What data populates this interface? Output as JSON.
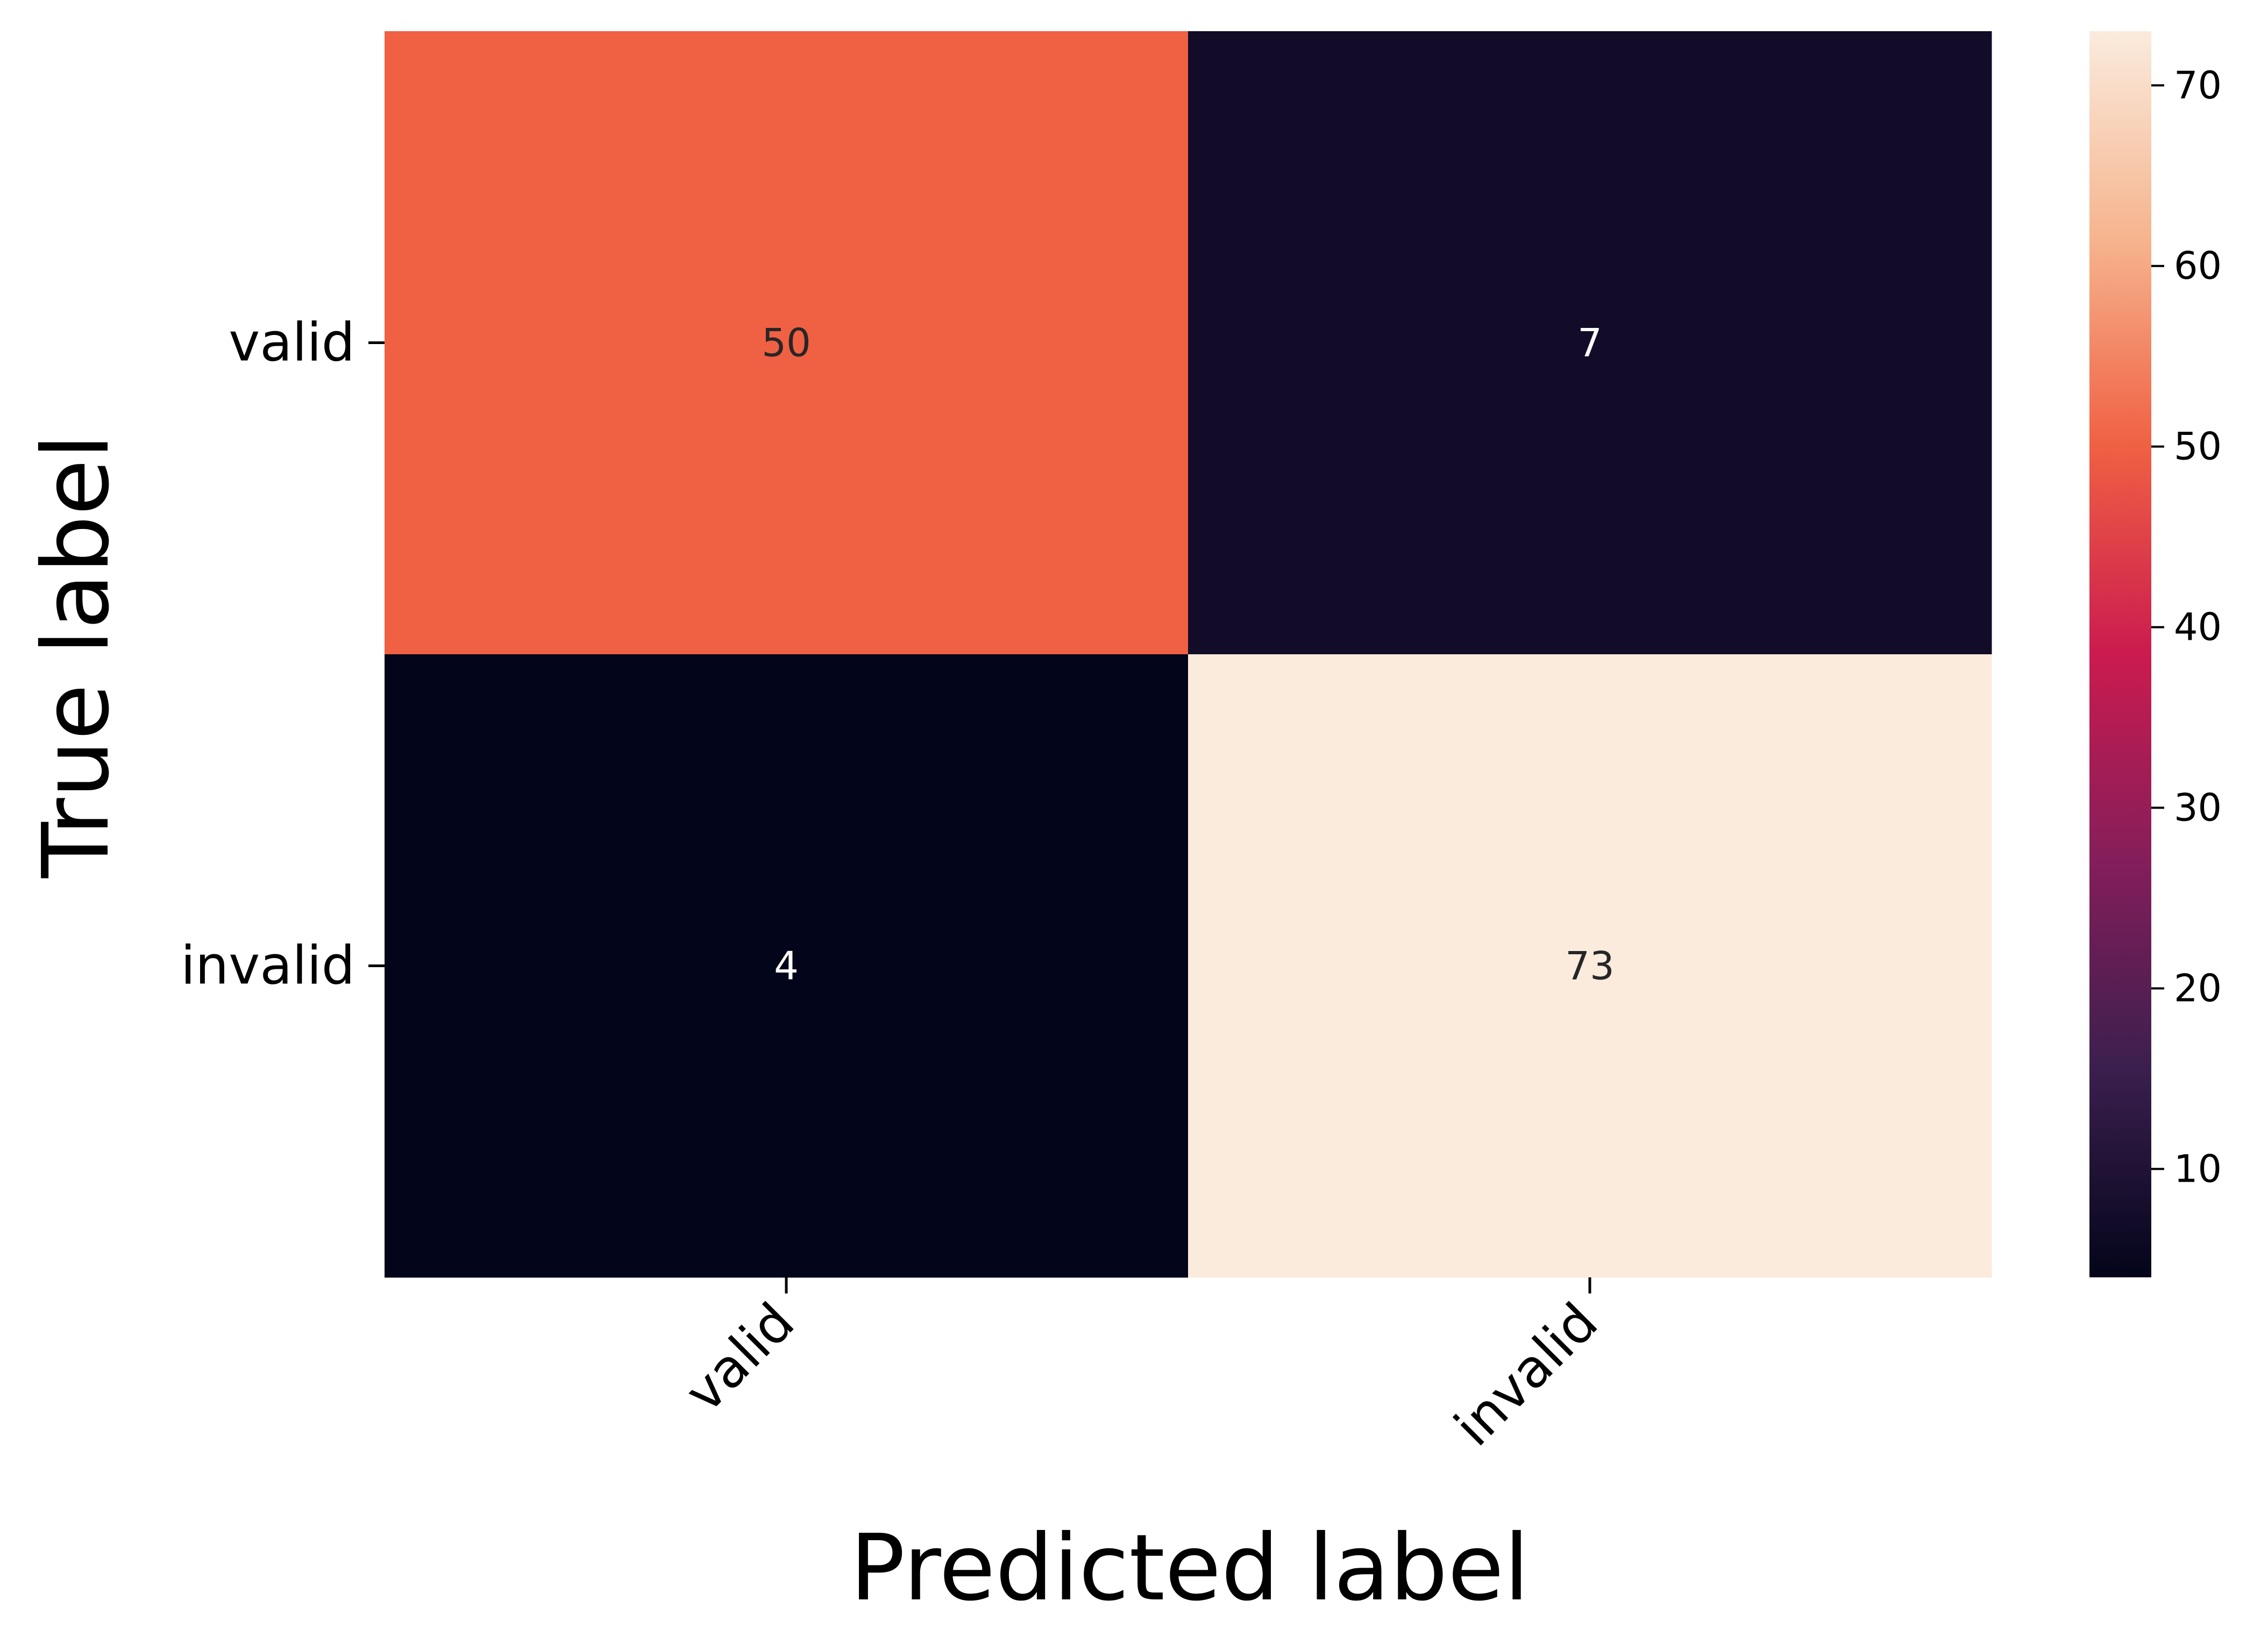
{
  "chart_data": {
    "type": "heatmap",
    "title": "",
    "xlabel": "Predicted label",
    "ylabel": "True label",
    "x_categories": [
      "valid",
      "invalid"
    ],
    "y_categories": [
      "valid",
      "invalid"
    ],
    "values": [
      [
        50,
        7
      ],
      [
        4,
        73
      ]
    ],
    "colormap": "rocket",
    "colorbar": {
      "min": 4,
      "max": 73,
      "ticks": [
        10,
        20,
        30,
        40,
        50,
        60,
        70
      ],
      "stops": [
        "#03051a",
        "#3b1f4e",
        "#841e5a",
        "#cb1b4f",
        "#f06043",
        "#f6b48e",
        "#faebdd"
      ]
    },
    "x_tick_rotation": "45 degrees",
    "grid": false,
    "annotation_colors": {
      "dark": "#262626",
      "light": "#ffffff"
    }
  }
}
